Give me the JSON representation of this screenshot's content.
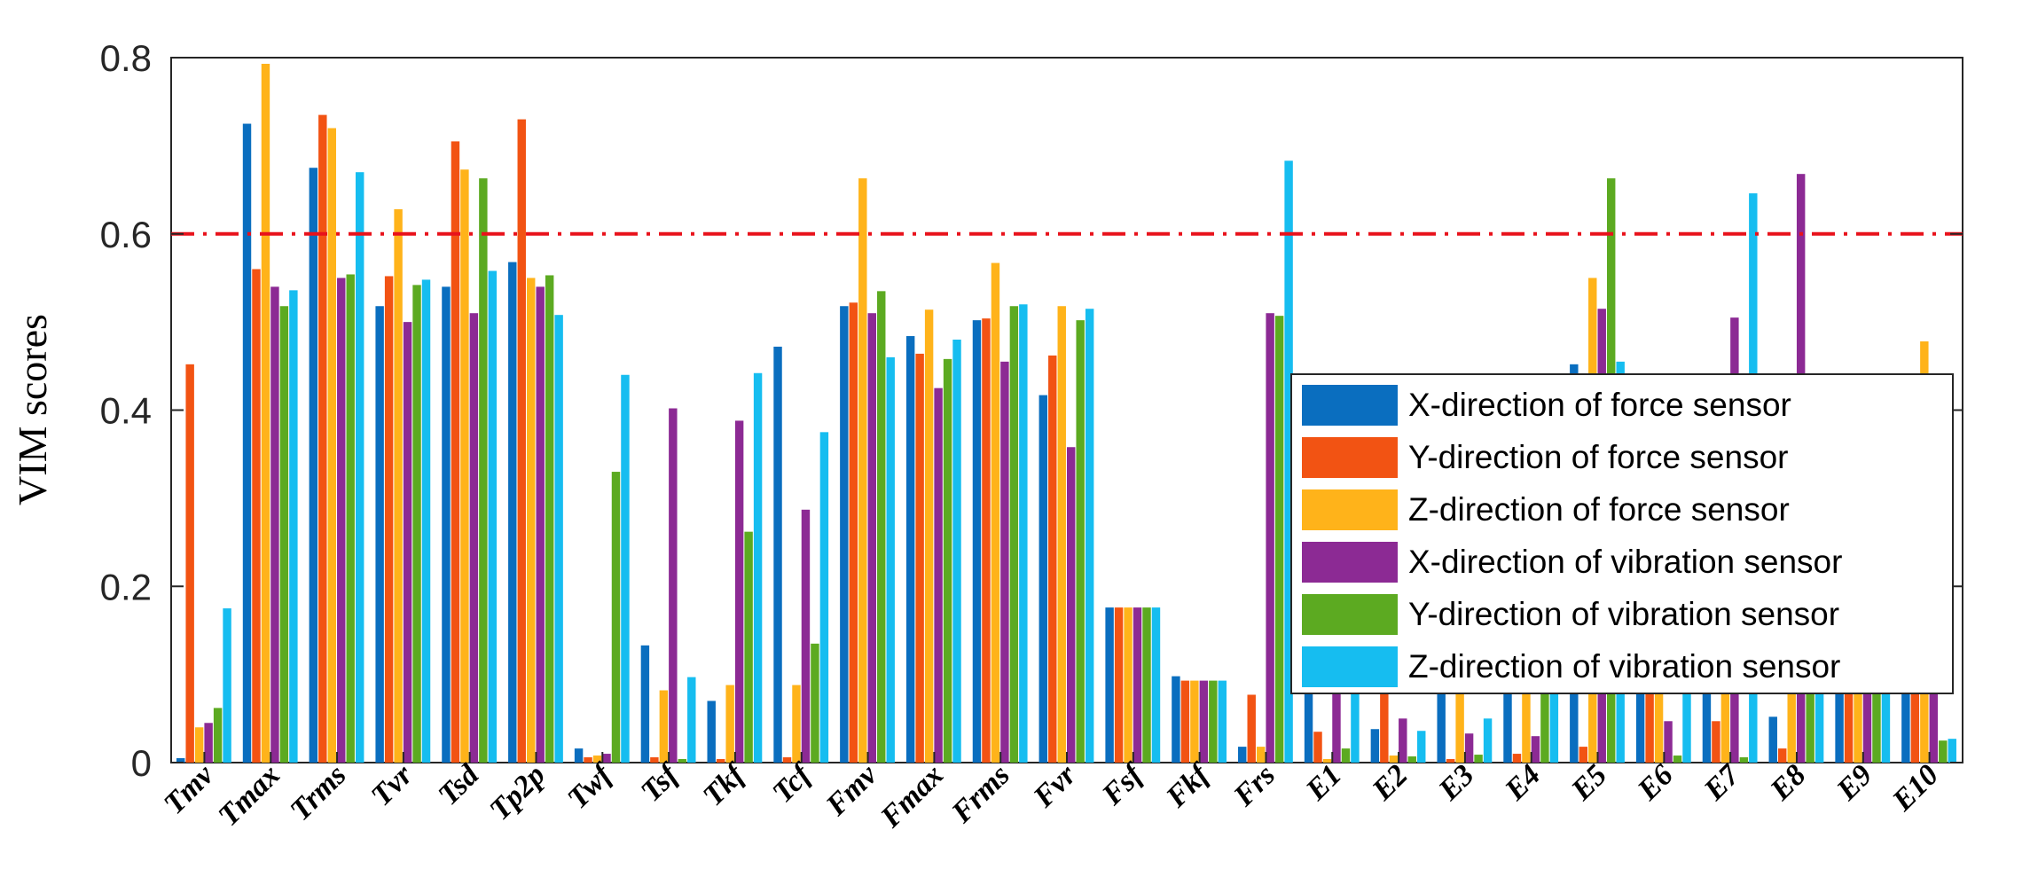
{
  "chart_data": {
    "type": "bar",
    "title": "",
    "xlabel": "",
    "ylabel": "VIM scores",
    "ylim": [
      0,
      0.8
    ],
    "yticks": [
      0,
      0.2,
      0.4,
      0.6,
      0.8
    ],
    "ytick_labels": [
      "0",
      "0.2",
      "0.4",
      "0.6",
      "0.8"
    ],
    "threshold": 0.6,
    "threshold_color": "#e8121b",
    "grid": false,
    "legend_position": "right",
    "categories": [
      "Tmv",
      "Tmax",
      "Trms",
      "Tvr",
      "Tsd",
      "Tp2p",
      "Twf",
      "Tsf",
      "Tkf",
      "Tcf",
      "Fmv",
      "Fmax",
      "Frms",
      "Fvr",
      "Fsf",
      "Fkf",
      "Frs",
      "E1",
      "E2",
      "E3",
      "E4",
      "E5",
      "E6",
      "E7",
      "E8",
      "E9",
      "E10"
    ],
    "series": [
      {
        "name": "X-direction of force sensor",
        "color": "#0a6ebf",
        "values": [
          0.005,
          0.725,
          0.675,
          0.518,
          0.54,
          0.568,
          0.016,
          0.133,
          0.07,
          0.472,
          0.518,
          0.484,
          0.502,
          0.417,
          0.176,
          0.098,
          0.018,
          0.1,
          0.038,
          0.1,
          0.1,
          0.452,
          0.1,
          0.1,
          0.052,
          0.1,
          0.1
        ]
      },
      {
        "name": "Y-direction of force sensor",
        "color": "#f25313",
        "values": [
          0.452,
          0.56,
          0.735,
          0.552,
          0.705,
          0.73,
          0.006,
          0.006,
          0.004,
          0.006,
          0.522,
          0.464,
          0.504,
          0.462,
          0.176,
          0.093,
          0.077,
          0.035,
          0.1,
          0.004,
          0.01,
          0.018,
          0.1,
          0.047,
          0.016,
          0.1,
          0.1
        ]
      },
      {
        "name": "Z-direction of force sensor",
        "color": "#ffb31a",
        "values": [
          0.04,
          0.793,
          0.72,
          0.628,
          0.673,
          0.55,
          0.008,
          0.082,
          0.088,
          0.088,
          0.663,
          0.514,
          0.567,
          0.518,
          0.176,
          0.093,
          0.018,
          0.004,
          0.008,
          0.1,
          0.1,
          0.55,
          0.1,
          0.1,
          0.1,
          0.1,
          0.478
        ]
      },
      {
        "name": "X-direction of vibration sensor",
        "color": "#8c2a94",
        "values": [
          0.045,
          0.54,
          0.55,
          0.5,
          0.51,
          0.54,
          0.01,
          0.402,
          0.388,
          0.287,
          0.51,
          0.425,
          0.455,
          0.358,
          0.176,
          0.093,
          0.51,
          0.1,
          0.05,
          0.033,
          0.03,
          0.515,
          0.047,
          0.505,
          0.668,
          0.1,
          0.1
        ]
      },
      {
        "name": "Y-direction of vibration sensor",
        "color": "#5caa21",
        "values": [
          0.062,
          0.518,
          0.554,
          0.542,
          0.663,
          0.553,
          0.33,
          0.004,
          0.262,
          0.135,
          0.535,
          0.458,
          0.518,
          0.502,
          0.176,
          0.093,
          0.507,
          0.016,
          0.007,
          0.009,
          0.1,
          0.663,
          0.008,
          0.006,
          0.1,
          0.1,
          0.025
        ]
      },
      {
        "name": "Z-direction of vibration sensor",
        "color": "#16bdf0",
        "values": [
          0.175,
          0.536,
          0.67,
          0.548,
          0.558,
          0.508,
          0.44,
          0.097,
          0.442,
          0.375,
          0.46,
          0.48,
          0.52,
          0.515,
          0.176,
          0.093,
          0.683,
          0.1,
          0.036,
          0.05,
          0.1,
          0.455,
          0.1,
          0.646,
          0.1,
          0.1,
          0.027
        ]
      }
    ]
  }
}
